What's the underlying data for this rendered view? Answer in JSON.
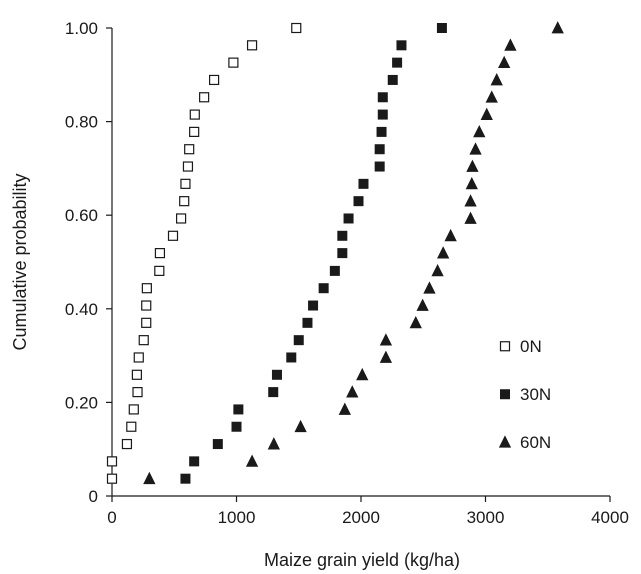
{
  "chart_data": {
    "type": "scatter",
    "title": "",
    "xlabel": "Maize grain yield (kg/ha)",
    "ylabel": "Cumulative probability",
    "xlim": [
      0,
      4000
    ],
    "ylim": [
      0,
      1.0
    ],
    "x_ticks": [
      0,
      1000,
      2000,
      3000,
      4000
    ],
    "x_tick_labels": [
      "0",
      "1000",
      "2000",
      "3000",
      "4000"
    ],
    "y_ticks": [
      0,
      0.2,
      0.4,
      0.6,
      0.8,
      1.0
    ],
    "y_tick_labels": [
      "0",
      "0.20",
      "0.40",
      "0.60",
      "0.80",
      "1.00"
    ],
    "grid": false,
    "legend_position": "right",
    "series": [
      {
        "name": "0N",
        "marker": "open-square",
        "color": "#1a1a1a",
        "points": [
          [
            0,
            0.037
          ],
          [
            0,
            0.074
          ],
          [
            120,
            0.111
          ],
          [
            155,
            0.148
          ],
          [
            175,
            0.185
          ],
          [
            205,
            0.222
          ],
          [
            200,
            0.259
          ],
          [
            215,
            0.296
          ],
          [
            255,
            0.333
          ],
          [
            275,
            0.37
          ],
          [
            275,
            0.407
          ],
          [
            280,
            0.444
          ],
          [
            380,
            0.481
          ],
          [
            385,
            0.519
          ],
          [
            490,
            0.556
          ],
          [
            555,
            0.593
          ],
          [
            580,
            0.63
          ],
          [
            590,
            0.667
          ],
          [
            610,
            0.704
          ],
          [
            620,
            0.741
          ],
          [
            660,
            0.778
          ],
          [
            665,
            0.815
          ],
          [
            740,
            0.852
          ],
          [
            820,
            0.889
          ],
          [
            975,
            0.926
          ],
          [
            1125,
            0.963
          ],
          [
            1480,
            1.0
          ]
        ]
      },
      {
        "name": "30N",
        "marker": "filled-square",
        "color": "#1a1a1a",
        "points": [
          [
            590,
            0.037
          ],
          [
            660,
            0.074
          ],
          [
            850,
            0.111
          ],
          [
            1000,
            0.148
          ],
          [
            1015,
            0.185
          ],
          [
            1295,
            0.222
          ],
          [
            1325,
            0.259
          ],
          [
            1440,
            0.296
          ],
          [
            1500,
            0.333
          ],
          [
            1570,
            0.37
          ],
          [
            1615,
            0.407
          ],
          [
            1700,
            0.444
          ],
          [
            1790,
            0.481
          ],
          [
            1850,
            0.519
          ],
          [
            1850,
            0.556
          ],
          [
            1900,
            0.593
          ],
          [
            1980,
            0.63
          ],
          [
            2020,
            0.667
          ],
          [
            2150,
            0.704
          ],
          [
            2150,
            0.741
          ],
          [
            2165,
            0.778
          ],
          [
            2175,
            0.815
          ],
          [
            2175,
            0.852
          ],
          [
            2255,
            0.889
          ],
          [
            2290,
            0.926
          ],
          [
            2325,
            0.963
          ],
          [
            2650,
            1.0
          ]
        ]
      },
      {
        "name": "60N",
        "marker": "filled-triangle",
        "color": "#1a1a1a",
        "points": [
          [
            300,
            0.037
          ],
          [
            1125,
            0.074
          ],
          [
            1300,
            0.111
          ],
          [
            1515,
            0.148
          ],
          [
            1870,
            0.185
          ],
          [
            1930,
            0.222
          ],
          [
            2010,
            0.259
          ],
          [
            2200,
            0.296
          ],
          [
            2200,
            0.333
          ],
          [
            2440,
            0.37
          ],
          [
            2495,
            0.407
          ],
          [
            2550,
            0.444
          ],
          [
            2615,
            0.481
          ],
          [
            2660,
            0.519
          ],
          [
            2720,
            0.556
          ],
          [
            2880,
            0.593
          ],
          [
            2880,
            0.63
          ],
          [
            2890,
            0.667
          ],
          [
            2895,
            0.704
          ],
          [
            2920,
            0.741
          ],
          [
            2950,
            0.778
          ],
          [
            3010,
            0.815
          ],
          [
            3050,
            0.852
          ],
          [
            3090,
            0.889
          ],
          [
            3150,
            0.926
          ],
          [
            3200,
            0.963
          ],
          [
            3580,
            1.0
          ]
        ]
      }
    ]
  }
}
